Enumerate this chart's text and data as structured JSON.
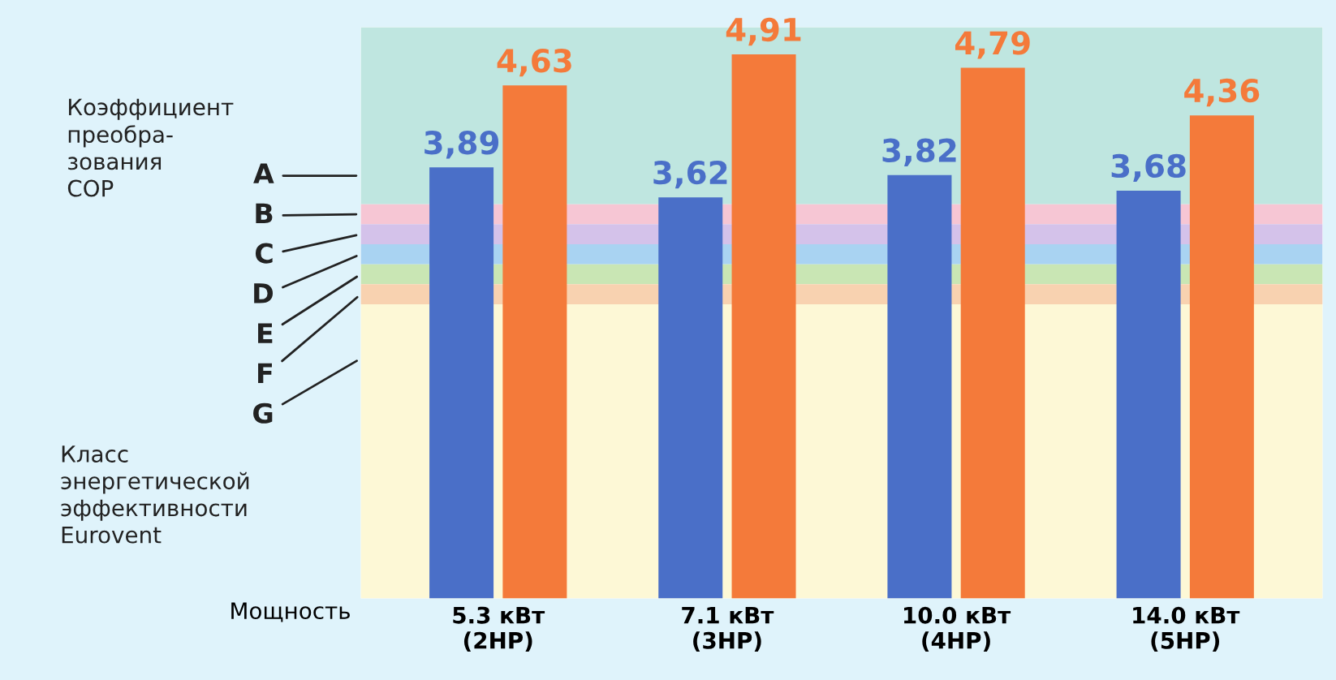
{
  "chart_data": {
    "type": "bar",
    "categories": [
      "5.3 кВт\n(2HP)",
      "7.1 кВт\n(3HP)",
      "10.0 кВт\n(4HP)",
      "14.0 кВт\n(5HP)"
    ],
    "series": [
      {
        "color": "#4a6fc8",
        "values": [
          3.89,
          3.62,
          3.82,
          3.68
        ],
        "value_labels": [
          "3,89",
          "3,62",
          "3,82",
          "3,68"
        ]
      },
      {
        "color": "#f47a3a",
        "values": [
          4.63,
          4.91,
          4.79,
          4.36
        ],
        "value_labels": [
          "4,63",
          "4,91",
          "4,79",
          "4,36"
        ]
      }
    ],
    "xlabel": "Мощность",
    "tick_labels": "x",
    "grid": false,
    "legend": false,
    "annotations": [
      "Коэффициент\nпреобра-\nзования\nCOP",
      "A",
      "B",
      "C",
      "D",
      "E",
      "F",
      "G",
      "Класс\nэнергетической\nэффективности\nEurovent"
    ]
  }
}
